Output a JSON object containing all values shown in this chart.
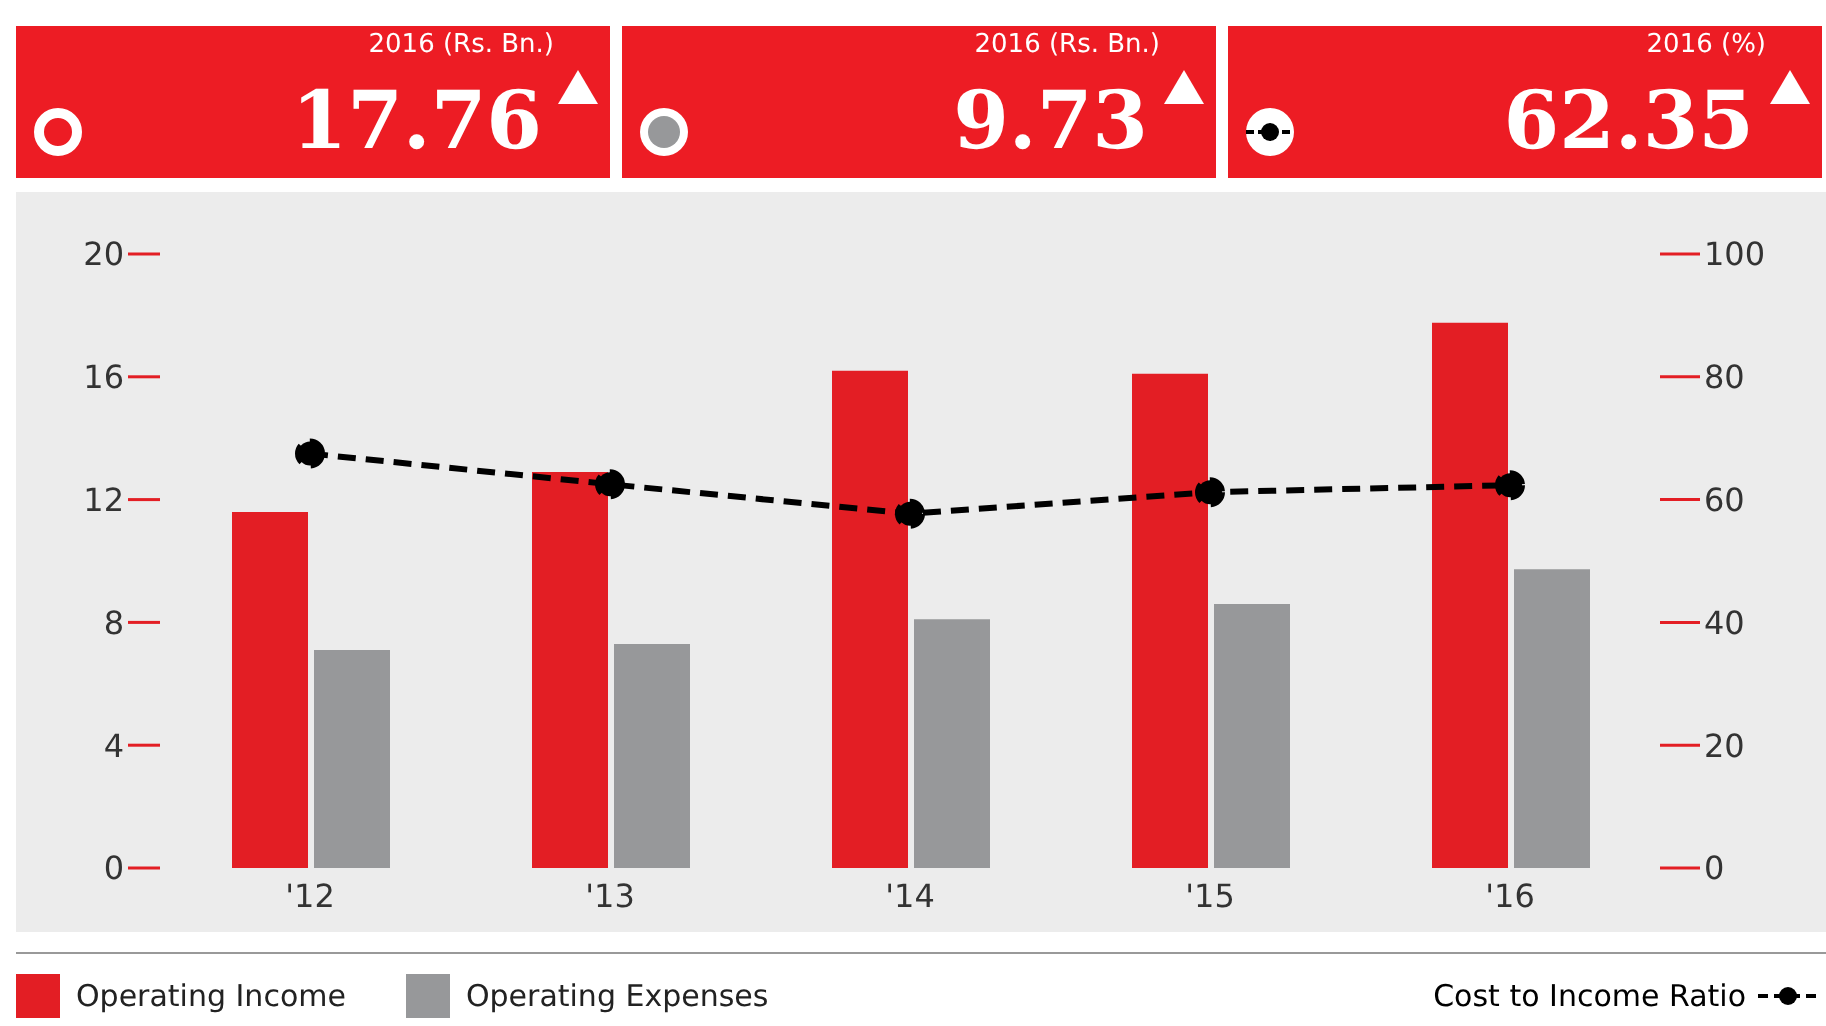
{
  "chart_data": {
    "type": "bar",
    "categories": [
      "'12",
      "'13",
      "'14",
      "'15",
      "'16"
    ],
    "series": [
      {
        "name": "Operating Income",
        "color": "#e31e24",
        "values": [
          11.6,
          12.9,
          16.2,
          16.1,
          17.76
        ]
      },
      {
        "name": "Operating Expenses",
        "color": "#97989a",
        "values": [
          7.1,
          7.3,
          8.1,
          8.6,
          9.73
        ]
      },
      {
        "name": "Cost to Income Ratio",
        "type": "line",
        "axis": "y2",
        "color": "#000000",
        "marker": "circle",
        "line_style": "dashed",
        "values": [
          67.5,
          62.5,
          57.7,
          61.2,
          62.35
        ]
      }
    ],
    "ylim": [
      0,
      20
    ],
    "yticks": [
      0,
      4,
      8,
      12,
      16,
      20
    ],
    "y2lim": [
      0,
      100
    ],
    "y2ticks": [
      0,
      20,
      40,
      60,
      80,
      100
    ],
    "grid": false,
    "legend": "bottom",
    "annotations": [
      "2016 (Rs. Bn.)",
      "17.76",
      "2016 (Rs. Bn.)",
      "9.73",
      "2016 (%)",
      "62.35"
    ]
  }
}
